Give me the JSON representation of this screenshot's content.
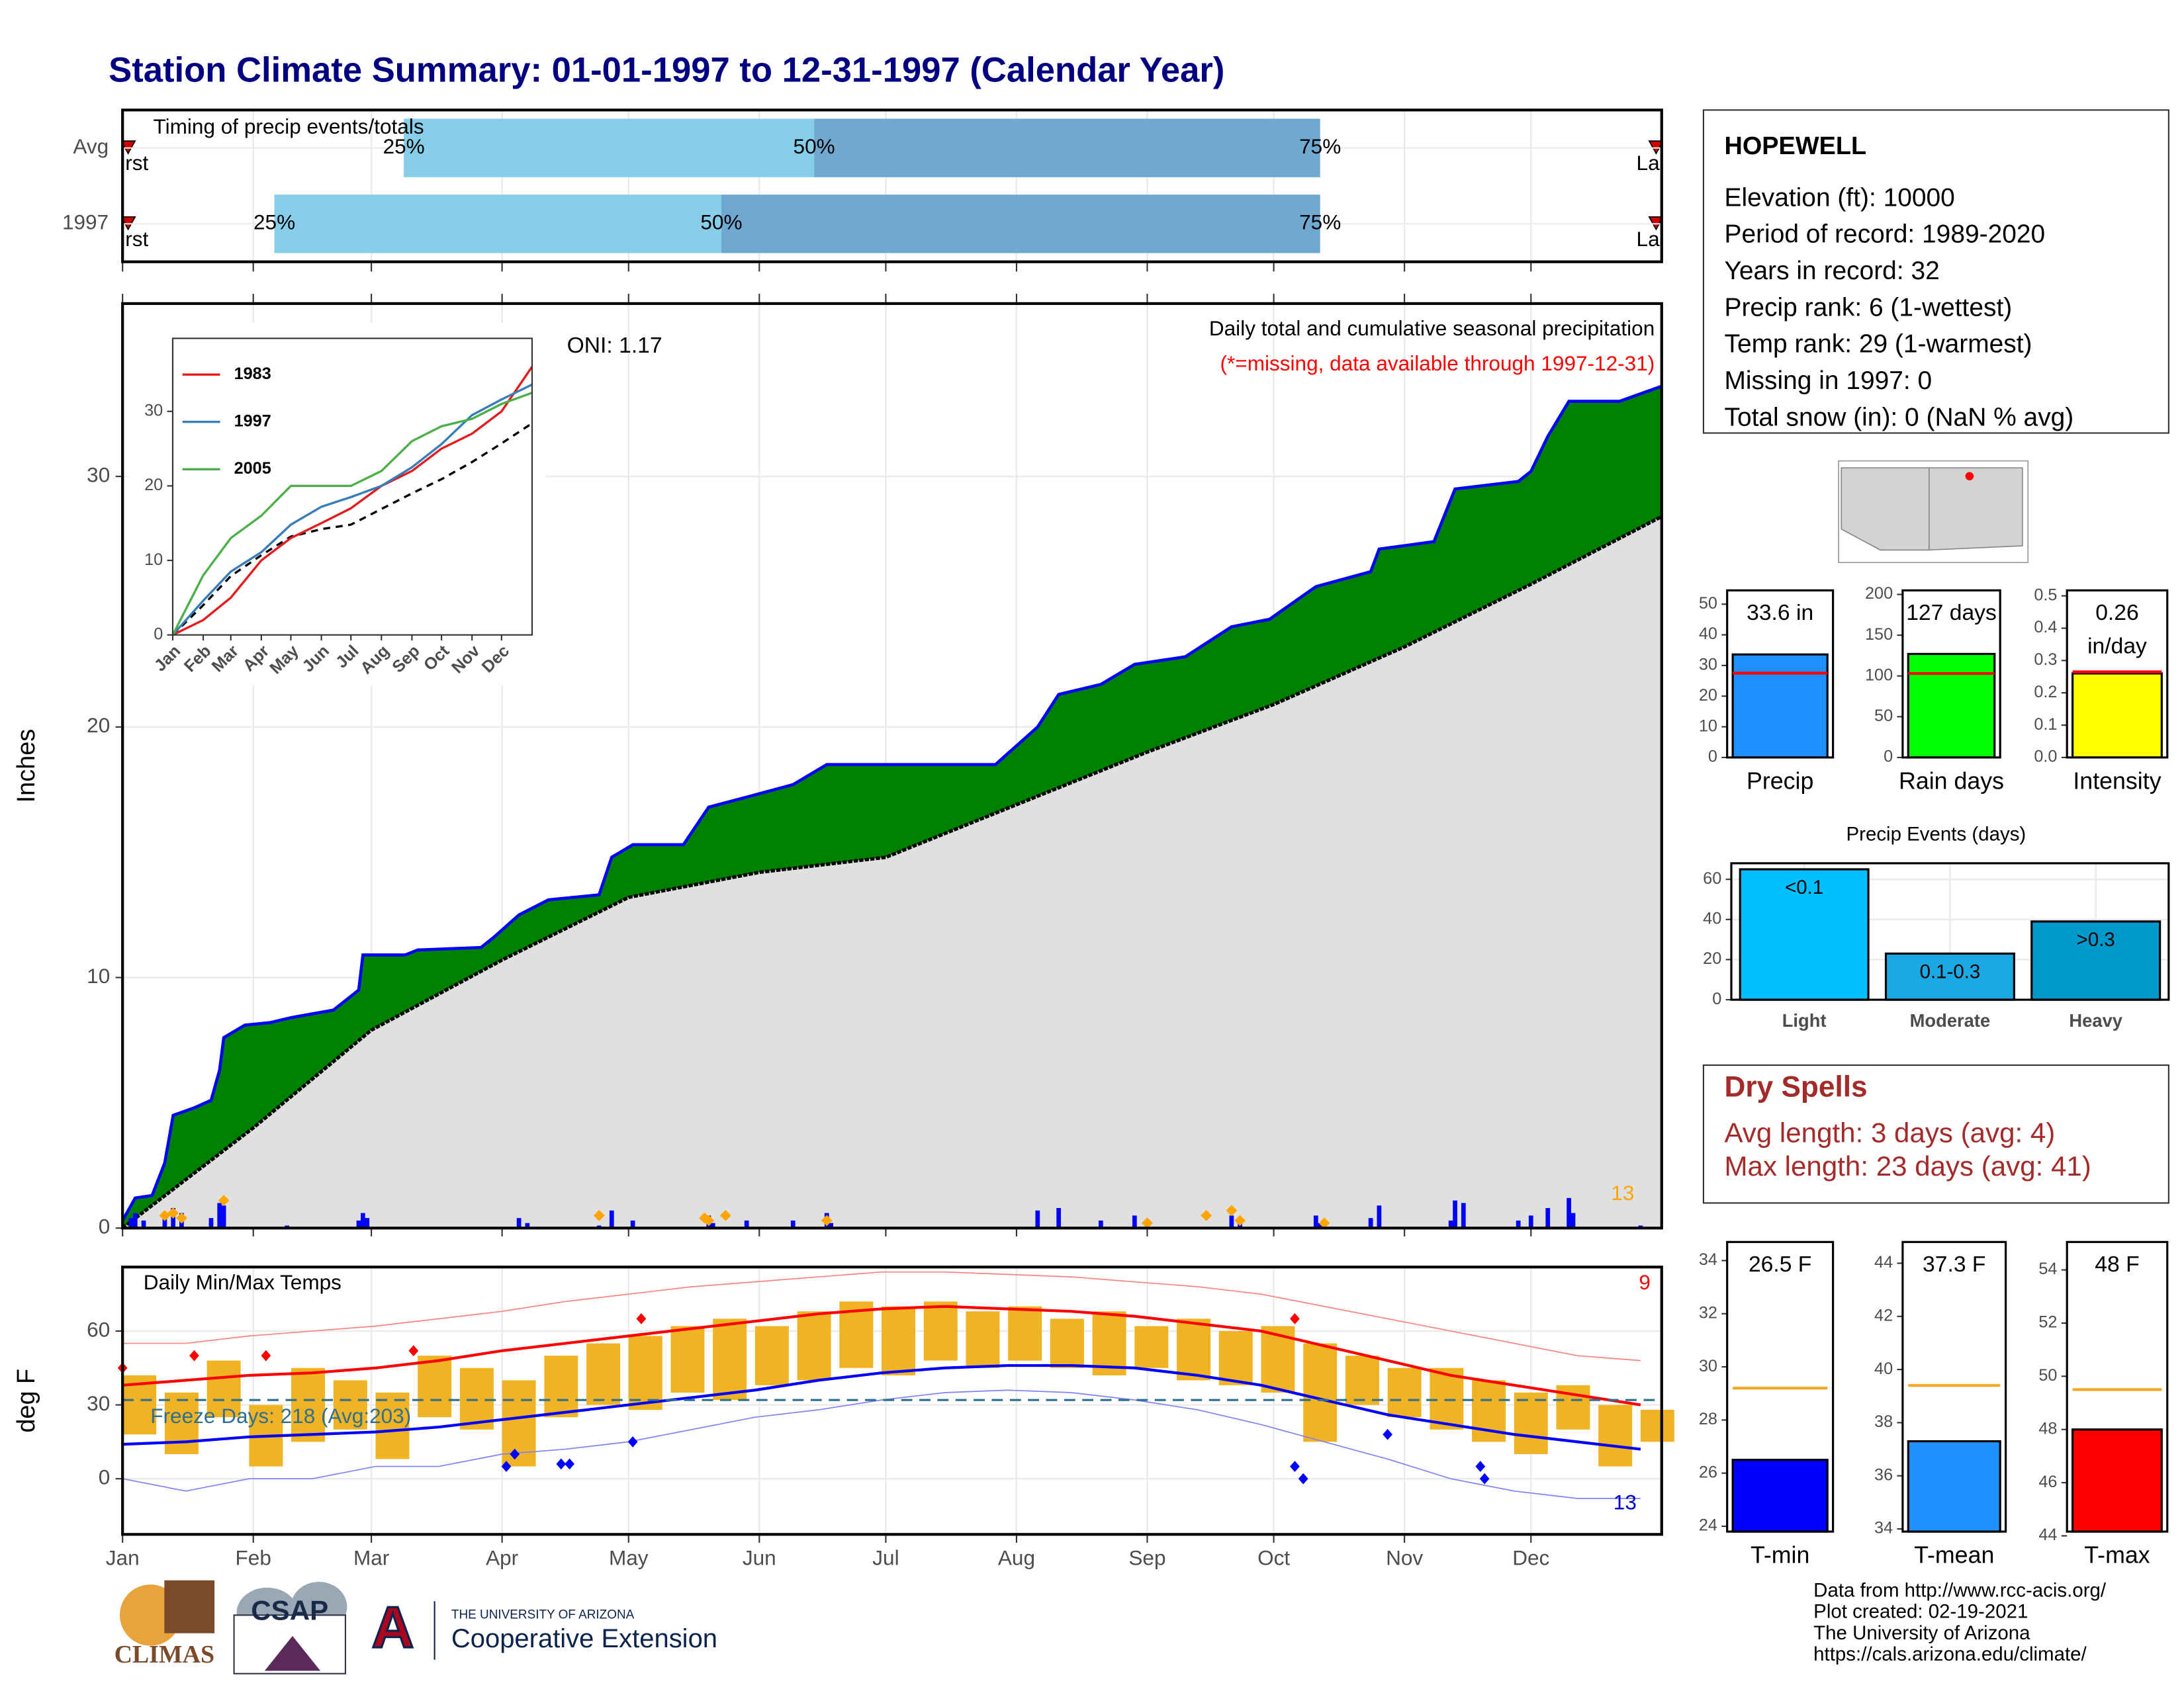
{
  "title": "Station Climate Summary: 01-01-1997 to 12-31-1997 (Calendar Year)",
  "station": {
    "name": "HOPEWELL",
    "lines": [
      "Elevation (ft): 10000",
      "Period of record: 1989-2020",
      "Years in record: 32",
      "Precip rank: 6 (1-wettest)",
      "Temp rank: 29 (1-warmest)",
      "Missing in 1997: 0",
      "Total snow (in): 0 (NaN % avg)"
    ]
  },
  "dry_spells": {
    "title": "Dry Spells",
    "lines": [
      "Avg length: 3 days (avg: 4)",
      "Max length: 23 days (avg: 41)"
    ]
  },
  "footer": [
    "Data from http://www.rcc-acis.org/",
    "Plot created: 02-19-2021",
    "The University of Arizona",
    "https://cals.arizona.edu/climate/"
  ],
  "logos": [
    "CLIMAS",
    "CSAP",
    "THE UNIVERSITY OF ARIZONA",
    "Cooperative Extension"
  ],
  "chart_data": [
    {
      "type": "timing",
      "title": "Timing of precip events/totals",
      "categories": [
        "Avg",
        "1997"
      ],
      "first_label": "First",
      "last_label": "Last",
      "quartile_labels": [
        "25%",
        "50%",
        "75%"
      ],
      "values": [
        [
          66.7,
          164,
          284
        ],
        [
          36,
          142,
          284
        ]
      ],
      "colors": [
        "#87ceeb",
        "#6fa8d0"
      ],
      "marker_color": "#cc0000",
      "xlim": [
        0,
        365
      ],
      "xticks": [
        0,
        31,
        59,
        90,
        120,
        151,
        181,
        212,
        243,
        273,
        304,
        334
      ]
    },
    {
      "type": "cumulative",
      "title": "Daily total and cumulative seasonal precipitation",
      "subtitle": "(*=missing, data available through 1997-12-31)",
      "annotation": "ONI: 1.17",
      "count_label": "13",
      "ylabel": "Inches",
      "xlim": [
        0,
        365
      ],
      "ylim": [
        0,
        36.9
      ],
      "xticks": [
        0,
        31,
        59,
        90,
        120,
        151,
        181,
        212,
        243,
        273,
        304,
        334
      ],
      "yticks": [
        0,
        10,
        20,
        30
      ],
      "grid": true,
      "series": [
        {
          "color": "#0000ff",
          "fill": "#008000",
          "x": [
            0,
            3,
            7,
            10,
            12,
            17,
            21,
            23,
            24,
            29,
            35,
            40,
            50,
            56,
            57,
            67,
            70,
            85,
            88,
            94,
            101,
            113,
            116,
            121,
            133,
            139,
            148,
            159,
            167,
            207,
            217,
            222,
            232,
            240,
            252,
            263,
            272,
            283,
            296,
            298,
            311,
            316,
            331,
            334,
            338,
            343,
            355,
            365
          ],
          "values": [
            0.3,
            1.2,
            1.3,
            2.6,
            4.5,
            4.8,
            5.1,
            6.3,
            7.6,
            8.1,
            8.2,
            8.4,
            8.7,
            9.5,
            10.9,
            10.9,
            11.1,
            11.2,
            11.6,
            12.5,
            13.1,
            13.3,
            14.8,
            15.3,
            15.3,
            16.8,
            17.2,
            17.7,
            18.5,
            18.5,
            20.0,
            21.3,
            21.7,
            22.5,
            22.8,
            24.0,
            24.3,
            25.6,
            26.2,
            27.1,
            27.4,
            29.5,
            29.8,
            30.2,
            31.6,
            33.0,
            33.0,
            33.6
          ]
        },
        {
          "color": "#000000",
          "fill": "#e0e0e0",
          "x": [
            0,
            31,
            59,
            90,
            120,
            151,
            181,
            212,
            243,
            273,
            304,
            334,
            365
          ],
          "values": [
            0,
            4.0,
            7.9,
            10.7,
            13.2,
            14.2,
            14.8,
            16.9,
            19.0,
            20.9,
            23.2,
            25.7,
            28.4
          ]
        }
      ],
      "daily": {
        "color": "#0000ff",
        "x": [
          2,
          3,
          5,
          10,
          12,
          14,
          21,
          23,
          24,
          39,
          56,
          57,
          58,
          94,
          96,
          113,
          116,
          121,
          139,
          140,
          148,
          159,
          167,
          168,
          217,
          222,
          232,
          240,
          263,
          265,
          283,
          284,
          296,
          298,
          315,
          316,
          318,
          331,
          334,
          338,
          343,
          344,
          360
        ],
        "values": [
          0.4,
          0.6,
          0.3,
          0.5,
          0.8,
          0.6,
          0.4,
          1.0,
          0.9,
          0.1,
          0.3,
          0.6,
          0.4,
          0.4,
          0.2,
          0.1,
          0.7,
          0.3,
          0.5,
          0.2,
          0.3,
          0.3,
          0.6,
          0.2,
          0.7,
          0.8,
          0.3,
          0.5,
          0.5,
          0.3,
          0.5,
          0.2,
          0.4,
          0.9,
          0.3,
          1.1,
          1.0,
          0.3,
          0.5,
          0.8,
          1.2,
          0.6,
          0.1
        ]
      },
      "snow": {
        "color": "#ffa500",
        "x": [
          10,
          12,
          14,
          24,
          113,
          138,
          139,
          143,
          167,
          243,
          257,
          263,
          265,
          285
        ],
        "values": [
          0.5,
          0.6,
          0.4,
          1.1,
          0.5,
          0.4,
          0.3,
          0.5,
          0.3,
          0.2,
          0.5,
          0.7,
          0.3,
          0.2
        ]
      }
    },
    {
      "type": "line",
      "xlim": [
        0,
        365
      ],
      "ylim": [
        0,
        39.8
      ],
      "xticks": [
        {
          "value": 0,
          "label": "Jan"
        },
        {
          "value": 31,
          "label": "Feb"
        },
        {
          "value": 59,
          "label": "Mar"
        },
        {
          "value": 90,
          "label": "Apr"
        },
        {
          "value": 120,
          "label": "May"
        },
        {
          "value": 151,
          "label": "Jun"
        },
        {
          "value": 181,
          "label": "Jul"
        },
        {
          "value": 212,
          "label": "Aug"
        },
        {
          "value": 243,
          "label": "Sep"
        },
        {
          "value": 273,
          "label": "Oct"
        },
        {
          "value": 304,
          "label": "Nov"
        },
        {
          "value": 334,
          "label": "Dec"
        }
      ],
      "yticks": [
        0,
        10,
        20,
        30
      ],
      "x": [
        0,
        31,
        59,
        90,
        120,
        151,
        181,
        212,
        243,
        273,
        304,
        334,
        365
      ],
      "series": [
        {
          "name": "1983",
          "color": "#e41a1c",
          "values": [
            0,
            2,
            5,
            10,
            13,
            15,
            17,
            20,
            22,
            25,
            27,
            30,
            36
          ]
        },
        {
          "name": "1997",
          "color": "#377eb8",
          "values": [
            0,
            4.6,
            8.5,
            11.1,
            14.8,
            17.2,
            18.5,
            20.0,
            22.5,
            25.6,
            29.5,
            31.6,
            33.6
          ]
        },
        {
          "name": "2005",
          "color": "#4daf4a",
          "values": [
            0,
            8,
            13,
            16,
            20,
            20,
            20,
            22,
            26,
            28,
            29,
            31,
            32.5
          ]
        }
      ],
      "reference": {
        "color": "#000000",
        "values": [
          0,
          4.0,
          7.9,
          10.7,
          13.2,
          14.2,
          14.8,
          16.9,
          19.0,
          20.9,
          23.2,
          25.7,
          28.4
        ]
      }
    },
    {
      "type": "temperature",
      "title": "Daily Min/Max Temps",
      "ylabel": "deg F",
      "annotation": "Freeze Days: 218 (Avg:203)",
      "high_count": "9",
      "low_count": "13",
      "freeze": 32,
      "xlim": [
        0,
        365
      ],
      "ylim": [
        -22.6,
        86
      ],
      "xticks": [
        {
          "value": 0,
          "label": "Jan"
        },
        {
          "value": 31,
          "label": "Feb"
        },
        {
          "value": 59,
          "label": "Mar"
        },
        {
          "value": 90,
          "label": "Apr"
        },
        {
          "value": 120,
          "label": "May"
        },
        {
          "value": 151,
          "label": "Jun"
        },
        {
          "value": 181,
          "label": "Jul"
        },
        {
          "value": 212,
          "label": "Aug"
        },
        {
          "value": 243,
          "label": "Sep"
        },
        {
          "value": 273,
          "label": "Oct"
        },
        {
          "value": 304,
          "label": "Nov"
        },
        {
          "value": 334,
          "label": "Dec"
        }
      ],
      "yticks": [
        0,
        30,
        60
      ],
      "grid": true,
      "daily": {
        "color": "#f0b323",
        "x": [
          0,
          10,
          20,
          30,
          40,
          50,
          60,
          70,
          80,
          90,
          100,
          110,
          120,
          130,
          140,
          150,
          160,
          170,
          180,
          190,
          200,
          210,
          220,
          230,
          240,
          250,
          260,
          270,
          280,
          290,
          300,
          310,
          320,
          330,
          340,
          350,
          360
        ],
        "low": [
          18,
          10,
          25,
          5,
          15,
          20,
          8,
          25,
          20,
          5,
          25,
          30,
          28,
          35,
          32,
          38,
          40,
          45,
          42,
          48,
          45,
          48,
          45,
          42,
          45,
          40,
          38,
          35,
          15,
          30,
          25,
          20,
          15,
          10,
          20,
          5,
          15
        ],
        "high": [
          42,
          35,
          48,
          30,
          45,
          40,
          35,
          50,
          45,
          40,
          50,
          55,
          58,
          62,
          65,
          62,
          68,
          72,
          70,
          72,
          68,
          70,
          65,
          68,
          62,
          65,
          60,
          62,
          55,
          50,
          45,
          45,
          40,
          35,
          38,
          30,
          28
        ]
      },
      "x": [
        0,
        15,
        30,
        45,
        60,
        75,
        90,
        105,
        120,
        135,
        150,
        165,
        180,
        195,
        210,
        225,
        240,
        255,
        270,
        285,
        300,
        315,
        330,
        345,
        360
      ],
      "series": [
        {
          "color": "#ff0000",
          "width": 2,
          "values": [
            38,
            40,
            42,
            43,
            45,
            48,
            52,
            55,
            58,
            61,
            64,
            67,
            69,
            70,
            69,
            68,
            66,
            63,
            60,
            54,
            48,
            42,
            38,
            34,
            30
          ]
        },
        {
          "color": "#0000ff",
          "width": 2,
          "values": [
            14,
            15,
            17,
            18,
            19,
            21,
            24,
            27,
            30,
            33,
            36,
            40,
            43,
            45,
            46,
            46,
            45,
            42,
            38,
            32,
            26,
            22,
            18,
            15,
            12
          ]
        },
        {
          "color": "#ff8080",
          "width": 0.8,
          "values": [
            55,
            55,
            58,
            60,
            62,
            65,
            68,
            72,
            75,
            78,
            80,
            82,
            84,
            84,
            83,
            82,
            80,
            78,
            75,
            70,
            65,
            60,
            55,
            50,
            48
          ]
        },
        {
          "color": "#8080ff",
          "width": 0.8,
          "values": [
            0,
            -5,
            0,
            0,
            5,
            5,
            10,
            12,
            15,
            20,
            25,
            28,
            32,
            35,
            36,
            35,
            32,
            28,
            22,
            15,
            8,
            0,
            -5,
            -8,
            -8
          ]
        }
      ],
      "record_highs": {
        "color": "#ff0000",
        "x": [
          0,
          17,
          34,
          69,
          123,
          278
        ],
        "values": [
          45,
          50,
          50,
          52,
          65,
          65
        ]
      },
      "record_lows": {
        "color": "#0000ff",
        "x": [
          91,
          93,
          104,
          106,
          121,
          278,
          280,
          300,
          322,
          323
        ],
        "values": [
          5,
          10,
          6,
          6,
          15,
          5,
          0,
          18,
          5,
          0
        ]
      }
    },
    {
      "type": "bar",
      "categories": [
        "Precip"
      ],
      "values": [
        33.6
      ],
      "value_labels": [
        "33.6 in"
      ],
      "color": "#1e90ff",
      "average": 27.5,
      "average_color": "#ff0000",
      "ylim": [
        0,
        54.5
      ],
      "yticks": [
        0,
        10,
        20,
        30,
        40,
        50
      ]
    },
    {
      "type": "bar",
      "categories": [
        "Rain days"
      ],
      "values": [
        127
      ],
      "value_labels": [
        "127 days"
      ],
      "color": "#00ff00",
      "average": 103,
      "average_color": "#ff0000",
      "ylim": [
        0,
        205
      ],
      "yticks": [
        0,
        50,
        100,
        150,
        200
      ]
    },
    {
      "type": "bar",
      "categories": [
        "Intensity"
      ],
      "values": [
        0.26
      ],
      "value_labels": [
        [
          "0.26",
          "in/day"
        ]
      ],
      "color": "#ffff00",
      "average": 0.265,
      "average_color": "#ff0000",
      "ylim": [
        0,
        0.517
      ],
      "yticks": [
        {
          "value": 0,
          "label": "0.0"
        },
        0.1,
        0.2,
        0.3,
        0.4,
        0.5
      ]
    },
    {
      "type": "bar",
      "title": "Precip Events (days)",
      "categories": [
        "Light",
        "Moderate",
        "Heavy"
      ],
      "values": [
        65,
        23,
        39
      ],
      "bar_labels": [
        "<0.1",
        "0.1-0.3",
        ">0.3"
      ],
      "colors": [
        "#00bfff",
        "#1ca8e3",
        "#0099cc"
      ],
      "grid": true,
      "ylim": [
        0,
        68
      ],
      "yticks": [
        0,
        20,
        40,
        60
      ]
    },
    {
      "type": "bar",
      "categories": [
        "T-min"
      ],
      "values": [
        26.5
      ],
      "value_labels": [
        "26.5 F"
      ],
      "color": "#0000ff",
      "average": 29.2,
      "average_color": "#f5a623",
      "ylim": [
        23.8,
        34.7
      ],
      "yticks": [
        24,
        26,
        28,
        30,
        32,
        34
      ]
    },
    {
      "type": "bar",
      "categories": [
        "T-mean"
      ],
      "values": [
        37.3
      ],
      "value_labels": [
        "37.3 F"
      ],
      "color": "#1e90ff",
      "average": 39.4,
      "average_color": "#f5a623",
      "ylim": [
        33.9,
        44.8
      ],
      "yticks": [
        34,
        36,
        38,
        40,
        42,
        44
      ]
    },
    {
      "type": "bar",
      "categories": [
        "T-max"
      ],
      "values": [
        48
      ],
      "value_labels": [
        "48 F"
      ],
      "color": "#ff0000",
      "average": 49.5,
      "average_color": "#f5a623",
      "ylim": [
        44.16,
        55.05
      ],
      "yticks": [
        44,
        46,
        48,
        50,
        52,
        54
      ]
    }
  ]
}
